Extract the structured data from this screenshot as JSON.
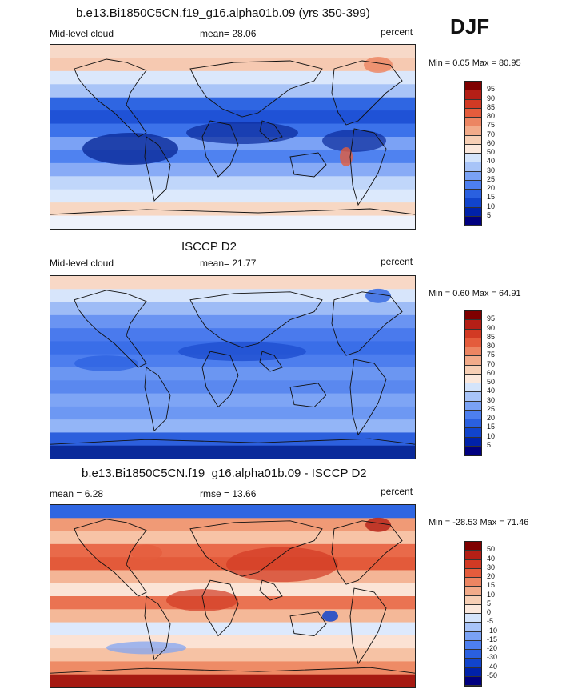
{
  "season": "DJF",
  "color_scales": {
    "absolute": [
      "#00007f",
      "#0022aa",
      "#1144cc",
      "#2a60e0",
      "#4d7ff0",
      "#7aa2f5",
      "#a8c4f8",
      "#d4e4fb",
      "#fbe8dc",
      "#f7cfb5",
      "#f2ab8a",
      "#ec8562",
      "#e45c3c",
      "#d23a24",
      "#b41f16",
      "#7f0000"
    ],
    "difference": [
      "#00007f",
      "#0022aa",
      "#1144cc",
      "#2a60e0",
      "#4d7ff0",
      "#7aa2f5",
      "#a8c4f8",
      "#d4e4fb",
      "#fbe8dc",
      "#f7cfb5",
      "#f2ab8a",
      "#ec8562",
      "#e45c3c",
      "#d23a24",
      "#b41f16",
      "#7f0000"
    ]
  },
  "panels": [
    {
      "title": "b.e13.Bi1850C5CN.f19_g16.alpha01b.09 (yrs 350-399)",
      "left_label": "Mid-level cloud",
      "stat_label": "mean=  28.06",
      "units": "percent",
      "minmax": "Min =   0.05 Max =  80.95",
      "cbar_ticks": [
        "95",
        "90",
        "85",
        "80",
        "75",
        "70",
        "60",
        "50",
        "40",
        "30",
        "25",
        "20",
        "15",
        "10",
        "5"
      ],
      "bands": [
        "#f7d9c8",
        "#f6c9b1",
        "#dbe7fb",
        "#a9c4f7",
        "#2f66e2",
        "#1f52d6",
        "#3c72ea",
        "#7ba2f5",
        "#4f82f0",
        "#88abf6",
        "#c0d6fa",
        "#dce9fc",
        "#f7d7c3",
        "#eef2fb"
      ]
    },
    {
      "title": "ISCCP D2",
      "left_label": "Mid-level cloud",
      "stat_label": "mean=  21.77",
      "units": "percent",
      "minmax": "Min =   0.60 Max =  64.91",
      "cbar_ticks": [
        "95",
        "90",
        "85",
        "80",
        "75",
        "70",
        "60",
        "50",
        "40",
        "30",
        "25",
        "20",
        "15",
        "10",
        "5"
      ],
      "bands": [
        "#f8d8c6",
        "#d7e5fb",
        "#9ebcf6",
        "#6a94f2",
        "#4a7aed",
        "#3a6ee8",
        "#4d7eee",
        "#6b96f2",
        "#5a88ef",
        "#7ea5f5",
        "#6d98f3",
        "#93b5f7",
        "#2d60dd",
        "#0a2a9a"
      ]
    },
    {
      "title": "b.e13.Bi1850C5CN.f19_g16.alpha01b.09 - ISCCP D2",
      "left_label": "mean =   6.28",
      "stat_label": "rmse =  13.66",
      "units": "percent",
      "minmax": "Min = -28.53 Max =  71.46",
      "cbar_ticks": [
        "50",
        "40",
        "30",
        "20",
        "15",
        "10",
        "5",
        "0",
        "-5",
        "-10",
        "-15",
        "-20",
        "-30",
        "-40",
        "-50"
      ],
      "bands": [
        "#2f66e2",
        "#f09a76",
        "#f7c3a6",
        "#e96a4a",
        "#e35a3a",
        "#f4b596",
        "#fbe4d6",
        "#ea7352",
        "#f4b898",
        "#dde9fc",
        "#fbe2d4",
        "#f6c2a4",
        "#ee8b66",
        "#a61a12"
      ]
    }
  ]
}
